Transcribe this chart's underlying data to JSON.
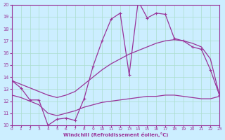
{
  "background_color": "#cceeff",
  "grid_color": "#aaddcc",
  "line_color": "#993399",
  "xlim": [
    0,
    23
  ],
  "ylim": [
    10,
    20
  ],
  "yticks": [
    10,
    11,
    12,
    13,
    14,
    15,
    16,
    17,
    18,
    19,
    20
  ],
  "xticks": [
    0,
    1,
    2,
    3,
    4,
    5,
    6,
    7,
    8,
    9,
    10,
    11,
    12,
    13,
    14,
    15,
    16,
    17,
    18,
    19,
    20,
    21,
    22,
    23
  ],
  "xlabel": "Windchill (Refroidissement éolien,°C)",
  "curve1_x": [
    0,
    1,
    2,
    3,
    4,
    5,
    6,
    7,
    8,
    9,
    10,
    11,
    12,
    13,
    14,
    15,
    16,
    17,
    18,
    19,
    20,
    21,
    22,
    23
  ],
  "curve1_y": [
    13.7,
    13.1,
    12.1,
    12.1,
    10.0,
    10.5,
    10.6,
    10.4,
    12.2,
    14.9,
    17.0,
    18.8,
    19.3,
    14.2,
    20.3,
    18.9,
    19.3,
    19.2,
    17.2,
    17.0,
    16.5,
    16.3,
    14.6,
    12.5
  ],
  "curve2_x": [
    0,
    1,
    2,
    3,
    4,
    5,
    6,
    7,
    8,
    9,
    10,
    11,
    12,
    13,
    14,
    15,
    16,
    17,
    18,
    19,
    20,
    21,
    22,
    23
  ],
  "curve2_y": [
    13.7,
    13.4,
    13.1,
    12.8,
    12.5,
    12.3,
    12.5,
    12.8,
    13.4,
    14.0,
    14.6,
    15.1,
    15.5,
    15.9,
    16.2,
    16.5,
    16.8,
    17.0,
    17.1,
    17.0,
    16.8,
    16.5,
    15.5,
    12.5
  ],
  "curve3_x": [
    0,
    1,
    2,
    3,
    4,
    5,
    6,
    7,
    8,
    9,
    10,
    11,
    12,
    13,
    14,
    15,
    16,
    17,
    18,
    19,
    20,
    21,
    22,
    23
  ],
  "curve3_y": [
    12.5,
    12.3,
    12.0,
    11.7,
    11.0,
    10.8,
    11.0,
    11.2,
    11.5,
    11.7,
    11.9,
    12.0,
    12.1,
    12.2,
    12.3,
    12.4,
    12.4,
    12.5,
    12.5,
    12.4,
    12.3,
    12.2,
    12.2,
    12.4
  ]
}
